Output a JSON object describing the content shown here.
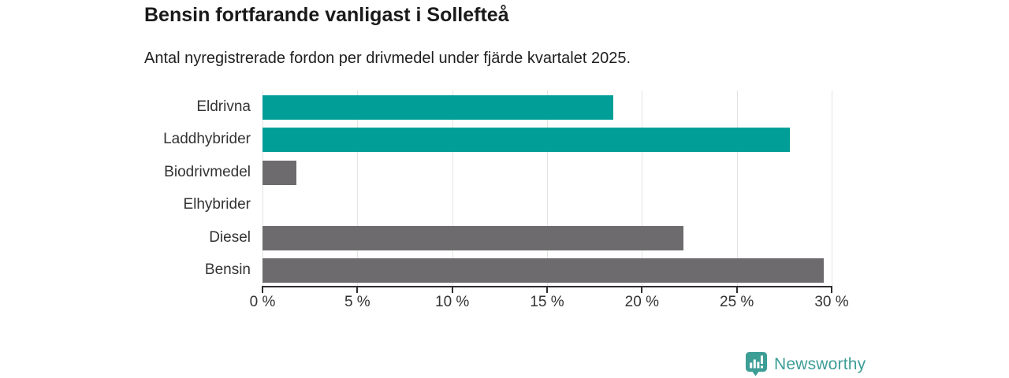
{
  "header": {
    "title": "Bensin fortfarande vanligast i Sollefteå",
    "subtitle": "Antal nyregistrerade fordon per drivmedel under fjärde kvartalet 2025."
  },
  "chart_data": {
    "type": "bar",
    "orientation": "horizontal",
    "title": "Bensin fortfarande vanligast i Sollefteå",
    "subtitle": "Antal nyregistrerade fordon per drivmedel under fjärde kvartalet 2025.",
    "categories": [
      "Eldrivna",
      "Laddhybrider",
      "Biodrivmedel",
      "Elhybrider",
      "Diesel",
      "Bensin"
    ],
    "values": [
      18.5,
      27.8,
      1.8,
      0,
      22.2,
      29.6
    ],
    "unit": "%",
    "bar_colors": [
      "#009e97",
      "#009e97",
      "#6e6b6e",
      "#6e6b6e",
      "#6e6b6e",
      "#6e6b6e"
    ],
    "xlim": [
      0,
      30
    ],
    "x_tick_values": [
      0,
      5,
      10,
      15,
      20,
      25,
      30
    ],
    "x_tick_labels": [
      "0 %",
      "5 %",
      "10 %",
      "15 %",
      "20 %",
      "25 %",
      "30 %"
    ],
    "grid": "vertical",
    "legend": "none",
    "xlabel": "",
    "ylabel": ""
  },
  "branding": {
    "logo_text": "Newsworthy"
  },
  "colors": {
    "teal": "#009e97",
    "gray": "#6e6b6e",
    "grid": "#e3e3e3",
    "axis": "#2e2e2e",
    "text": "#333333",
    "logo_teal": "#3d9e96"
  }
}
